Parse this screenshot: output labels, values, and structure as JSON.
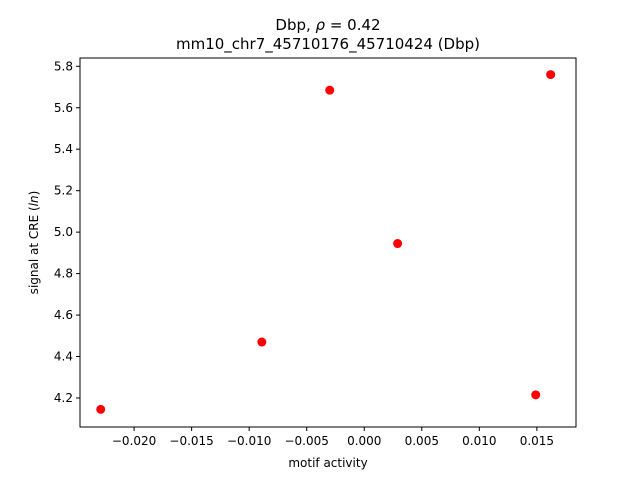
{
  "chart_data": {
    "type": "scatter",
    "title_line1_prefix": "Dbp, ",
    "title_line1_rho": "ρ",
    "title_line1_suffix": " = 0.42",
    "title_line2": "mm10_chr7_45710176_45710424 (Dbp)",
    "xlabel": "motif activity",
    "ylabel_prefix": "signal at CRE (",
    "ylabel_italic": "ln",
    "ylabel_suffix": ")",
    "xlim": [
      -0.0247,
      0.0184
    ],
    "ylim": [
      4.06,
      5.84
    ],
    "xticks": [
      -0.02,
      -0.015,
      -0.01,
      -0.005,
      0.0,
      0.005,
      0.01,
      0.015
    ],
    "xtick_labels": [
      "−0.020",
      "−0.015",
      "−0.010",
      "−0.005",
      "0.000",
      "0.005",
      "0.010",
      "0.015"
    ],
    "yticks": [
      4.2,
      4.4,
      4.6,
      4.8,
      5.0,
      5.2,
      5.4,
      5.6,
      5.8
    ],
    "ytick_labels": [
      "4.2",
      "4.4",
      "4.6",
      "4.8",
      "5.0",
      "5.2",
      "5.4",
      "5.6",
      "5.8"
    ],
    "points": [
      {
        "x": -0.0229,
        "y": 4.145
      },
      {
        "x": -0.0089,
        "y": 4.47
      },
      {
        "x": -0.003,
        "y": 5.685
      },
      {
        "x": 0.0029,
        "y": 4.945
      },
      {
        "x": 0.0149,
        "y": 4.215
      },
      {
        "x": 0.0162,
        "y": 5.76
      }
    ],
    "point_color": "#ff0000",
    "grid": false,
    "legend": "none"
  }
}
